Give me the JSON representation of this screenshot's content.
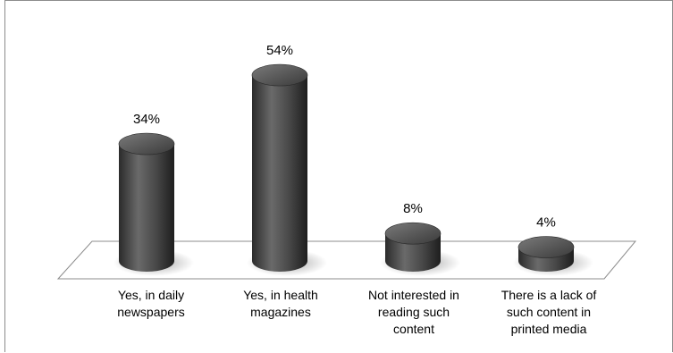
{
  "chart_data": {
    "type": "bar",
    "categories": [
      "Yes, in daily\nnewspapers",
      "Yes, in health\nmagazines",
      "Not interested in\nreading such\ncontent",
      "There is a lack of\nsuch content in\nprinted media"
    ],
    "values": [
      34,
      54,
      8,
      4
    ],
    "data_labels": [
      "34%",
      "54%",
      "8%",
      "4%"
    ],
    "ylim": [
      0,
      60
    ],
    "title": "",
    "xlabel": "",
    "ylabel": "",
    "grid": false,
    "legend": "none",
    "bar_shape": "cylinder"
  },
  "colors": {
    "bar_dark": "#2a2a2a",
    "bar_mid": "#5b5b5b",
    "bar_light": "#7a7a7a",
    "floor_stroke": "#8c8c8c",
    "frame": "#8c8c8c"
  }
}
